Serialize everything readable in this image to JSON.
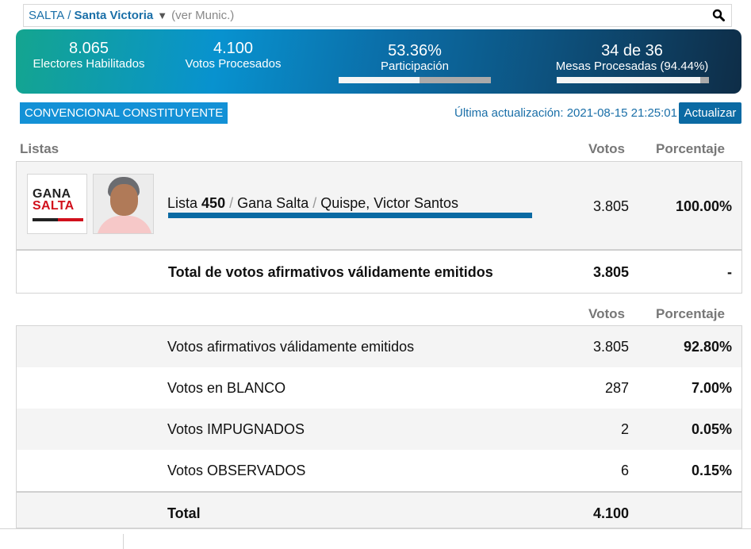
{
  "location": {
    "province": "SALTA",
    "separator": "/",
    "municipality": "Santa Victoria",
    "dropdown_arrow": "▼",
    "link": "(ver Munic.)",
    "search_icon": "search-icon"
  },
  "stats": {
    "electores": {
      "value": "8.065",
      "label": "Electores Habilitados"
    },
    "votos": {
      "value": "4.100",
      "label": "Votos Procesados"
    },
    "participacion": {
      "value": "53.36%",
      "label": "Participación",
      "percent": 53.36
    },
    "mesas": {
      "value": "34 de 36",
      "label": "Mesas Procesadas (94.44%)",
      "percent": 94.44
    }
  },
  "cargo": "CONVENCIONAL CONSTITUYENTE",
  "update": {
    "text": "Última actualización: 2021-08-15 21:25:01",
    "button": "Actualizar"
  },
  "lists_table": {
    "headers": {
      "listas": "Listas",
      "votos": "Votos",
      "porcentaje": "Porcentaje"
    },
    "rows": [
      {
        "prefix": "Lista",
        "number": "450",
        "sep": "/",
        "party": "Gana Salta",
        "candidate": "Quispe, Victor Santos",
        "logo_top": "GANA",
        "logo_bottom": "SALTA",
        "votes": "3.805",
        "percent": "100.00%",
        "bar_percent": 100
      }
    ],
    "total": {
      "label": "Total de votos afirmativos válidamente emitidos",
      "votes": "3.805",
      "percent": "-"
    }
  },
  "summary_table": {
    "headers": {
      "votos": "Votos",
      "porcentaje": "Porcentaje"
    },
    "rows": [
      {
        "label": "Votos afirmativos válidamente emitidos",
        "votes": "3.805",
        "percent": "92.80%"
      },
      {
        "label": "Votos en BLANCO",
        "votes": "287",
        "percent": "7.00%"
      },
      {
        "label": "Votos IMPUGNADOS",
        "votes": "2",
        "percent": "0.05%"
      },
      {
        "label": "Votos OBSERVADOS",
        "votes": "6",
        "percent": "0.15%"
      }
    ],
    "total": {
      "label": "Total",
      "votes": "4.100"
    }
  },
  "colors": {
    "accent_blue": "#0b6aa3",
    "badge_blue": "#1391d6",
    "link_blue": "#1a6fa8",
    "gana_red": "#d1101c"
  }
}
